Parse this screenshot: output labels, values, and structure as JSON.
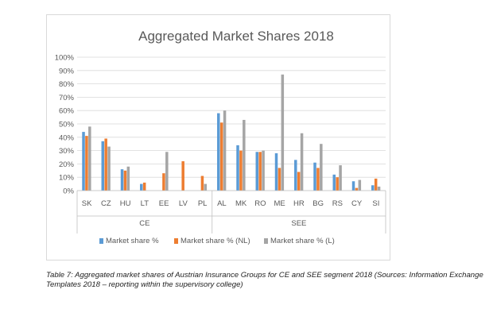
{
  "chart_data": {
    "type": "bar",
    "title": "Aggregated Market Shares 2018",
    "categories": [
      "SK",
      "CZ",
      "HU",
      "LT",
      "EE",
      "LV",
      "PL",
      "AL",
      "MK",
      "RO",
      "ME",
      "HR",
      "BG",
      "RS",
      "CY",
      "SI"
    ],
    "groups": [
      {
        "label": "CE",
        "categories": [
          "SK",
          "CZ",
          "HU",
          "LT",
          "EE",
          "LV",
          "PL"
        ]
      },
      {
        "label": "SEE",
        "categories": [
          "AL",
          "MK",
          "RO",
          "ME",
          "HR",
          "BG",
          "RS",
          "CY",
          "SI"
        ]
      }
    ],
    "series": [
      {
        "name": "Market share %",
        "color": "#5b9bd5",
        "values": [
          44,
          37,
          16,
          5,
          null,
          null,
          null,
          58,
          34,
          29,
          28,
          23,
          21,
          12,
          7,
          4
        ]
      },
      {
        "name": "Market share % (NL)",
        "color": "#ed7d31",
        "values": [
          41,
          39,
          15,
          6,
          13,
          22,
          11,
          51,
          30,
          29,
          17,
          14,
          17,
          10,
          2,
          9
        ]
      },
      {
        "name": "Market share % (L)",
        "color": "#a5a5a5",
        "values": [
          48,
          33,
          18,
          null,
          29,
          null,
          5,
          60,
          53,
          30,
          87,
          43,
          35,
          19,
          8,
          3
        ]
      }
    ],
    "ylim": [
      0,
      100
    ],
    "yticks": [
      "0%",
      "10%",
      "20%",
      "30%",
      "40%",
      "50%",
      "60%",
      "70%",
      "80%",
      "90%",
      "100%"
    ],
    "grid": true,
    "legend_position": "bottom"
  },
  "caption": "Table 7: Aggregated market shares of Austrian Insurance Groups for CE and SEE segment 2018 (Sources: Information Exchange Templates 2018 – reporting within the supervisory college)"
}
